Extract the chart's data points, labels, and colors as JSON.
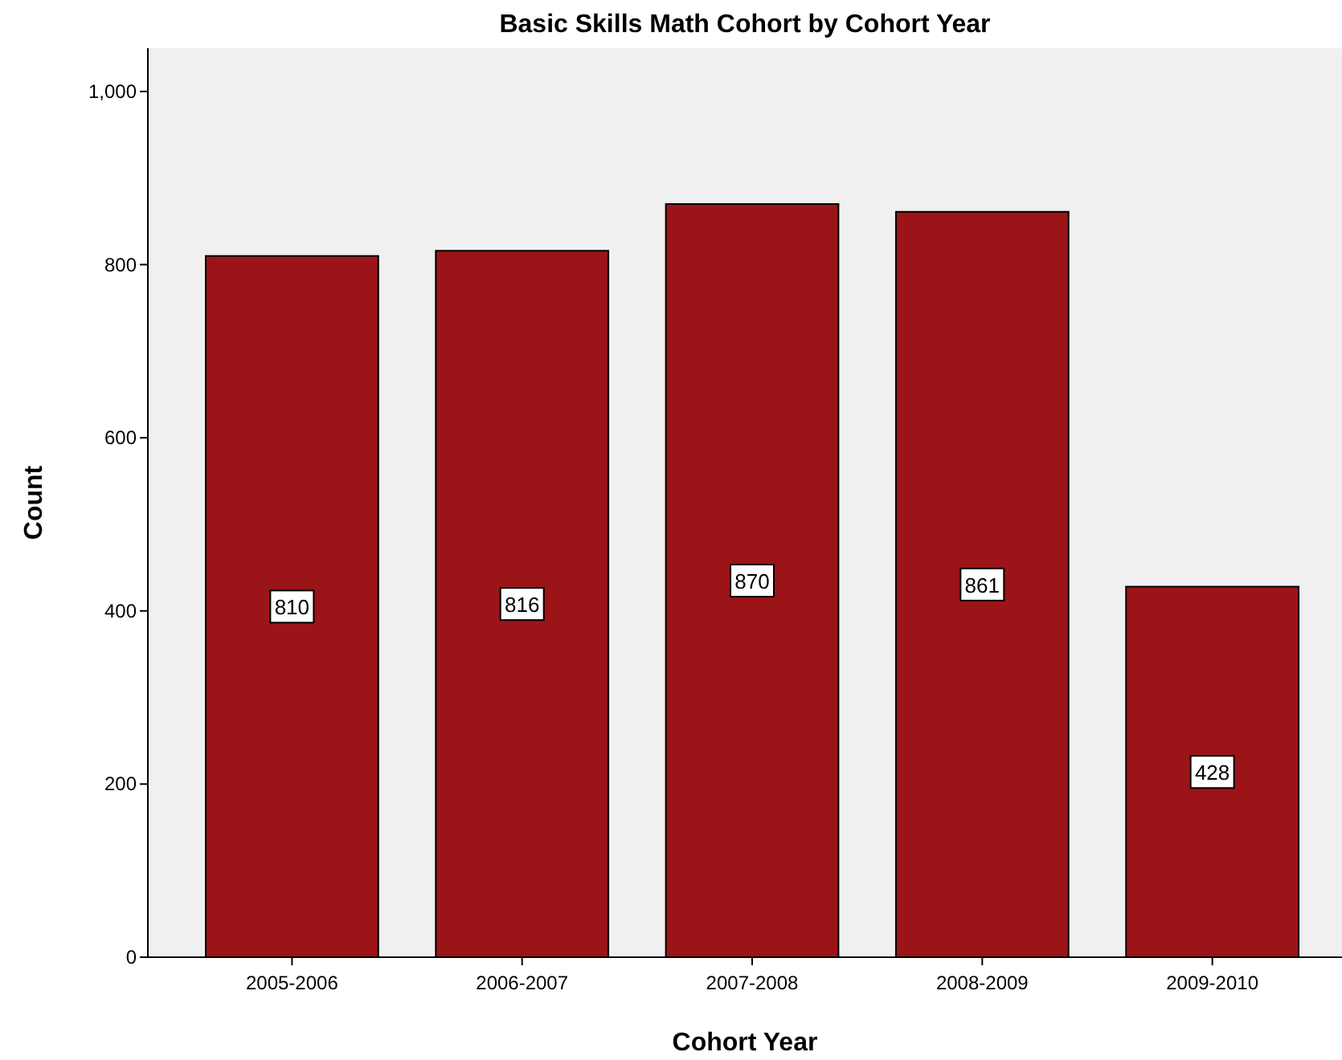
{
  "chart_data": {
    "type": "bar",
    "title": "Basic Skills Math Cohort by Cohort Year",
    "xlabel": "Cohort Year",
    "ylabel": "Count",
    "categories": [
      "2005-2006",
      "2006-2007",
      "2007-2008",
      "2008-2009",
      "2009-2010"
    ],
    "values": [
      810,
      816,
      870,
      861,
      428
    ],
    "color": "#9b1418",
    "ylim": [
      0,
      1050
    ],
    "yticks": [
      0,
      200,
      400,
      600,
      800,
      {
        "value": 1000,
        "label": "1,000"
      }
    ],
    "data_labels": true
  }
}
